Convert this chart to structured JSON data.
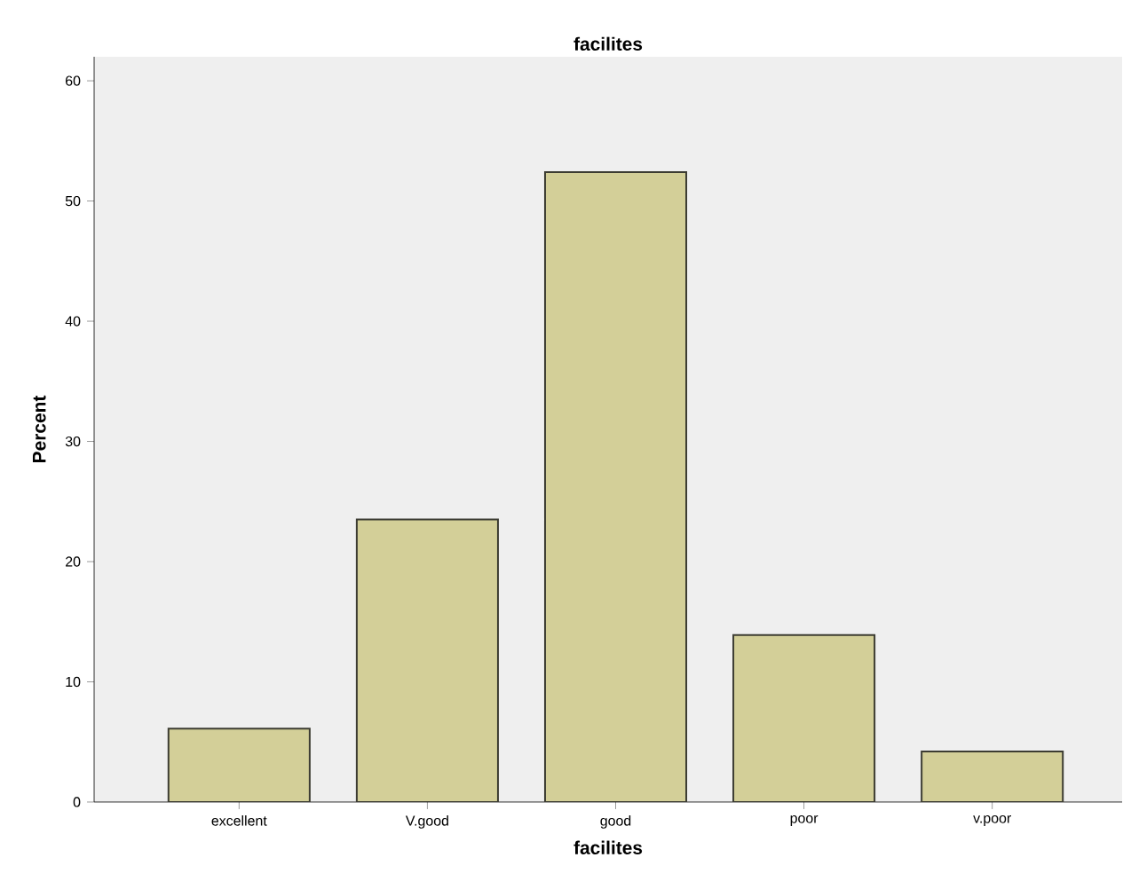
{
  "chart_data": {
    "type": "bar",
    "title": "facilites",
    "xlabel": "facilites",
    "ylabel": "Percent",
    "categories": [
      "excellent",
      "V.good",
      "good",
      "poor",
      "v.poor"
    ],
    "values": [
      6.1,
      23.5,
      52.4,
      13.9,
      4.2
    ],
    "color": "#d3cf98",
    "ylim": [
      0,
      62
    ],
    "yticks": [
      0,
      10,
      20,
      30,
      40,
      50,
      60
    ],
    "grid": false
  }
}
